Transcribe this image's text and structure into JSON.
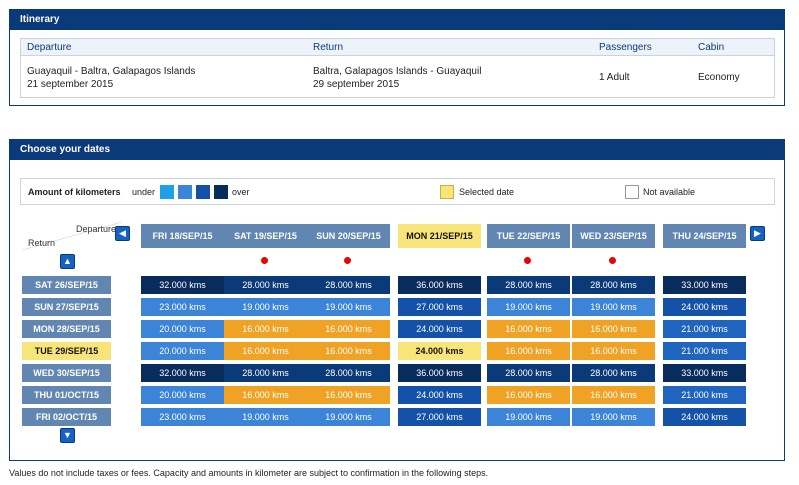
{
  "itinerary": {
    "title": "Itinerary",
    "headers": {
      "departure": "Departure",
      "return": "Return",
      "passengers": "Passengers",
      "cabin": "Cabin"
    },
    "departure_route": "Guayaquil - Baltra, Galapagos Islands",
    "departure_date": "21 september 2015",
    "return_route": "Baltra, Galapagos Islands - Guayaquil",
    "return_date": "29 september 2015",
    "passengers": "1 Adult",
    "cabin": "Economy"
  },
  "dates": {
    "title": "Choose your dates",
    "legend": {
      "amount_label": "Amount of kilometers",
      "under": "under",
      "over": "over",
      "swatch_colors": [
        "#1ea0e6",
        "#3b84d8",
        "#1352a8",
        "#082c5c"
      ],
      "selected_label": "Selected date",
      "selected_color": "#f8e57a",
      "na_label": "Not available"
    },
    "corner": {
      "departure": "Departure",
      "return": "Return"
    },
    "columns": [
      "FRI 18/SEP/15",
      "SAT 19/SEP/15",
      "SUN 20/SEP/15",
      "MON 21/SEP/15",
      "TUE 22/SEP/15",
      "WED 23/SEP/15",
      "THU 24/SEP/15"
    ],
    "rows": [
      {
        "label": "SAT 26/SEP/15",
        "cells": [
          "32.000 kms",
          "28.000 kms",
          "28.000 kms",
          "36.000 kms",
          "28.000 kms",
          "28.000 kms",
          "33.000 kms"
        ]
      },
      {
        "label": "SUN 27/SEP/15",
        "cells": [
          "23.000 kms",
          "19.000 kms",
          "19.000 kms",
          "27.000 kms",
          "19.000 kms",
          "19.000 kms",
          "24.000 kms"
        ]
      },
      {
        "label": "MON 28/SEP/15",
        "cells": [
          "20.000 kms",
          "16.000 kms",
          "16.000 kms",
          "24.000 kms",
          "16.000 kms",
          "16.000 kms",
          "21.000 kms"
        ]
      },
      {
        "label": "TUE 29/SEP/15",
        "cells": [
          "20.000 kms",
          "16.000 kms",
          "16.000 kms",
          "24.000 kms",
          "16.000 kms",
          "16.000 kms",
          "21.000 kms"
        ]
      },
      {
        "label": "WED 30/SEP/15",
        "cells": [
          "32.000 kms",
          "28.000 kms",
          "28.000 kms",
          "36.000 kms",
          "28.000 kms",
          "28.000 kms",
          "33.000 kms"
        ]
      },
      {
        "label": "THU 01/OCT/15",
        "cells": [
          "20.000 kms",
          "16.000 kms",
          "16.000 kms",
          "24.000 kms",
          "16.000 kms",
          "16.000 kms",
          "21.000 kms"
        ]
      },
      {
        "label": "FRI 02/OCT/15",
        "cells": [
          "23.000 kms",
          "19.000 kms",
          "19.000 kms",
          "27.000 kms",
          "19.000 kms",
          "19.000 kms",
          "24.000 kms"
        ]
      }
    ]
  },
  "footer_note": "Values do not include taxes or fees. Capacity and amounts in kilometer are subject to confirmation in the following steps."
}
